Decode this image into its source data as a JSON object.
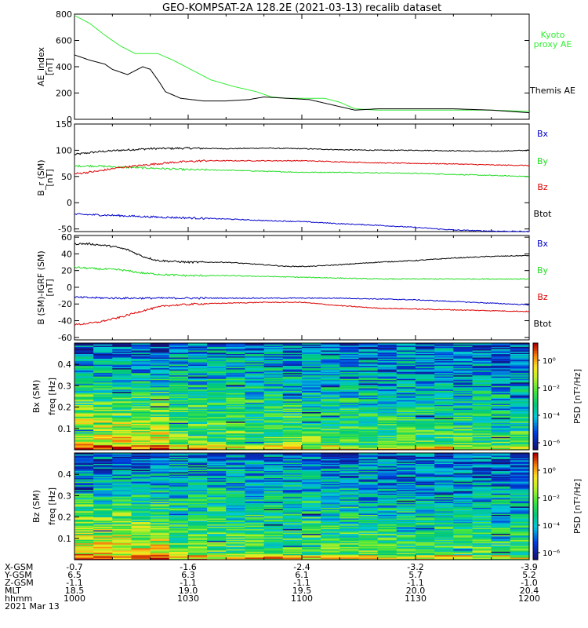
{
  "title": "GEO-KOMPSAT-2A 128.2E (2021-03-13) recalib dataset",
  "colors": {
    "black": "#000000",
    "green": "#22dd22",
    "red": "#dd0000",
    "blue": "#0000cc",
    "kyoto": "#33ee33"
  },
  "chart_data": [
    {
      "type": "line",
      "ylabel_lines": [
        "AE_index",
        "[nT]"
      ],
      "ylim": [
        0,
        800
      ],
      "yticks": [
        "0",
        "200",
        "400",
        "600",
        "800"
      ],
      "x_time_range": [
        "10:00",
        "12:00"
      ],
      "legend": [
        {
          "label_lines": [
            "Kyoto",
            "proxy AE"
          ],
          "color": "#33ee33"
        },
        {
          "label_lines": [
            "Themis AE"
          ],
          "color": "#000000"
        }
      ],
      "series": [
        {
          "name": "Kyoto proxy AE",
          "color": "#33ee33",
          "points": [
            [
              0,
              790
            ],
            [
              4,
              730
            ],
            [
              8,
              640
            ],
            [
              12,
              560
            ],
            [
              16,
              500
            ],
            [
              22,
              500
            ],
            [
              26,
              450
            ],
            [
              30,
              390
            ],
            [
              36,
              300
            ],
            [
              42,
              250
            ],
            [
              48,
              210
            ],
            [
              52,
              170
            ],
            [
              56,
              160
            ],
            [
              60,
              160
            ],
            [
              66,
              160
            ],
            [
              70,
              130
            ],
            [
              74,
              80
            ],
            [
              80,
              70
            ],
            [
              90,
              70
            ],
            [
              100,
              70
            ],
            [
              110,
              70
            ],
            [
              120,
              60
            ]
          ]
        },
        {
          "name": "Themis AE",
          "color": "#000000",
          "points": [
            [
              0,
              490
            ],
            [
              4,
              450
            ],
            [
              8,
              420
            ],
            [
              10,
              380
            ],
            [
              14,
              340
            ],
            [
              16,
              370
            ],
            [
              18,
              400
            ],
            [
              20,
              380
            ],
            [
              22,
              300
            ],
            [
              24,
              210
            ],
            [
              28,
              160
            ],
            [
              34,
              140
            ],
            [
              40,
              140
            ],
            [
              46,
              150
            ],
            [
              50,
              170
            ],
            [
              56,
              160
            ],
            [
              62,
              150
            ],
            [
              68,
              110
            ],
            [
              74,
              70
            ],
            [
              80,
              80
            ],
            [
              90,
              80
            ],
            [
              100,
              80
            ],
            [
              110,
              70
            ],
            [
              120,
              50
            ]
          ]
        }
      ]
    },
    {
      "type": "line",
      "ylabel_lines": [
        "B_r (SM)",
        "[nT]"
      ],
      "ylim": [
        -55,
        150
      ],
      "yticks": [
        "-50",
        "0",
        "50",
        "100",
        "150"
      ],
      "legend": [
        {
          "label_lines": [
            "Bx"
          ],
          "color": "#0000cc"
        },
        {
          "label_lines": [
            "By"
          ],
          "color": "#22dd22"
        },
        {
          "label_lines": [
            "Bz"
          ],
          "color": "#dd0000"
        },
        {
          "label_lines": [
            "Btot"
          ],
          "color": "#000000"
        }
      ],
      "series": [
        {
          "name": "Btot",
          "color": "#000000",
          "points": [
            [
              0,
              92
            ],
            [
              6,
              97
            ],
            [
              12,
              100
            ],
            [
              20,
              103
            ],
            [
              30,
              104
            ],
            [
              40,
              103
            ],
            [
              50,
              104
            ],
            [
              60,
              103
            ],
            [
              70,
              101
            ],
            [
              80,
              100
            ],
            [
              90,
              100
            ],
            [
              100,
              99
            ],
            [
              110,
              98
            ],
            [
              120,
              100
            ]
          ]
        },
        {
          "name": "By",
          "color": "#22dd22",
          "points": [
            [
              0,
              70
            ],
            [
              6,
              70
            ],
            [
              12,
              68
            ],
            [
              20,
              66
            ],
            [
              30,
              63
            ],
            [
              40,
              62
            ],
            [
              50,
              60
            ],
            [
              60,
              58
            ],
            [
              70,
              58
            ],
            [
              80,
              57
            ],
            [
              90,
              56
            ],
            [
              100,
              54
            ],
            [
              110,
              52
            ],
            [
              120,
              50
            ]
          ]
        },
        {
          "name": "Bz",
          "color": "#dd0000",
          "points": [
            [
              0,
              55
            ],
            [
              6,
              60
            ],
            [
              12,
              67
            ],
            [
              20,
              73
            ],
            [
              26,
              77
            ],
            [
              34,
              80
            ],
            [
              40,
              80
            ],
            [
              50,
              80
            ],
            [
              60,
              80
            ],
            [
              70,
              78
            ],
            [
              80,
              76
            ],
            [
              90,
              75
            ],
            [
              100,
              74
            ],
            [
              110,
              72
            ],
            [
              120,
              71
            ]
          ]
        },
        {
          "name": "Bx",
          "color": "#0000cc",
          "points": [
            [
              0,
              -22
            ],
            [
              10,
              -24
            ],
            [
              20,
              -27
            ],
            [
              30,
              -29
            ],
            [
              40,
              -31
            ],
            [
              50,
              -34
            ],
            [
              60,
              -36
            ],
            [
              70,
              -40
            ],
            [
              80,
              -43
            ],
            [
              90,
              -47
            ],
            [
              100,
              -52
            ],
            [
              110,
              -54
            ],
            [
              120,
              -55
            ]
          ]
        }
      ]
    },
    {
      "type": "line",
      "ylabel_lines": [
        "B (SM)-IGRF (SM)",
        "[nT]"
      ],
      "ylim": [
        -63,
        62
      ],
      "yticks": [
        "-60",
        "-40",
        "-20",
        "0",
        "20",
        "40",
        "60"
      ],
      "legend": [
        {
          "label_lines": [
            "Bx"
          ],
          "color": "#0000cc"
        },
        {
          "label_lines": [
            "By"
          ],
          "color": "#22dd22"
        },
        {
          "label_lines": [
            "Bz"
          ],
          "color": "#dd0000"
        },
        {
          "label_lines": [
            "Btot"
          ],
          "color": "#000000"
        }
      ],
      "series": [
        {
          "name": "Btot",
          "color": "#000000",
          "points": [
            [
              0,
              52
            ],
            [
              4,
              52
            ],
            [
              10,
              49
            ],
            [
              14,
              45
            ],
            [
              18,
              37
            ],
            [
              22,
              32
            ],
            [
              30,
              30
            ],
            [
              40,
              30
            ],
            [
              50,
              27
            ],
            [
              56,
              25
            ],
            [
              62,
              25
            ],
            [
              70,
              27
            ],
            [
              80,
              30
            ],
            [
              90,
              32
            ],
            [
              100,
              35
            ],
            [
              110,
              37
            ],
            [
              120,
              38
            ]
          ]
        },
        {
          "name": "By",
          "color": "#22dd22",
          "points": [
            [
              0,
              24
            ],
            [
              6,
              22
            ],
            [
              12,
              21
            ],
            [
              18,
              17
            ],
            [
              24,
              15
            ],
            [
              30,
              14
            ],
            [
              40,
              14
            ],
            [
              50,
              13
            ],
            [
              60,
              12
            ],
            [
              70,
              11
            ],
            [
              80,
              10
            ],
            [
              90,
              10
            ],
            [
              100,
              10
            ],
            [
              110,
              10
            ],
            [
              120,
              10
            ]
          ]
        },
        {
          "name": "Bx",
          "color": "#0000cc",
          "points": [
            [
              0,
              -12
            ],
            [
              10,
              -13
            ],
            [
              20,
              -13
            ],
            [
              30,
              -13
            ],
            [
              40,
              -13
            ],
            [
              50,
              -13
            ],
            [
              60,
              -13
            ],
            [
              70,
              -13
            ],
            [
              80,
              -14
            ],
            [
              90,
              -15
            ],
            [
              100,
              -17
            ],
            [
              110,
              -19
            ],
            [
              120,
              -21
            ]
          ]
        },
        {
          "name": "Bz",
          "color": "#dd0000",
          "points": [
            [
              0,
              -45
            ],
            [
              6,
              -42
            ],
            [
              12,
              -36
            ],
            [
              18,
              -28
            ],
            [
              24,
              -22
            ],
            [
              32,
              -20
            ],
            [
              40,
              -19
            ],
            [
              50,
              -18
            ],
            [
              60,
              -18
            ],
            [
              70,
              -22
            ],
            [
              80,
              -25
            ],
            [
              90,
              -26
            ],
            [
              100,
              -27
            ],
            [
              110,
              -28
            ],
            [
              120,
              -29
            ]
          ]
        }
      ]
    },
    {
      "type": "heatmap",
      "ylabel_lines": [
        "Bx (SM)",
        "freq [Hz]"
      ],
      "yticks": [
        "0.1",
        "0.2",
        "0.3",
        "0.4"
      ],
      "colorbar_label": "PSD [nT²/Hz]",
      "colorbar_ticks": [
        "10⁰",
        "10⁻²",
        "10⁻⁴",
        "10⁻⁶"
      ]
    },
    {
      "type": "heatmap",
      "ylabel_lines": [
        "Bz (SM)",
        "freq [Hz]"
      ],
      "yticks": [
        "0.1",
        "0.2",
        "0.3",
        "0.4"
      ],
      "colorbar_label": "PSD [nT²/Hz]",
      "colorbar_ticks": [
        "10⁰",
        "10⁻²",
        "10⁻⁴",
        "10⁻⁶"
      ]
    }
  ],
  "axis_table": {
    "row_labels": [
      "X-GSM",
      "Y-GSM",
      "Z-GSM",
      "MLT",
      "hhmm",
      "2021 Mar 13"
    ],
    "columns": [
      [
        "-0.7",
        "6.5",
        "-1.1",
        "18.5",
        "1000"
      ],
      [
        "-1.6",
        "6.3",
        "-1.1",
        "19.0",
        "1030"
      ],
      [
        "-2.4",
        "6.1",
        "-1.1",
        "19.5",
        "1100"
      ],
      [
        "-3.2",
        "5.7",
        "-1.1",
        "20.0",
        "1130"
      ],
      [
        "-3.9",
        "5.2",
        "-1.0",
        "20.4",
        "1200"
      ]
    ]
  }
}
